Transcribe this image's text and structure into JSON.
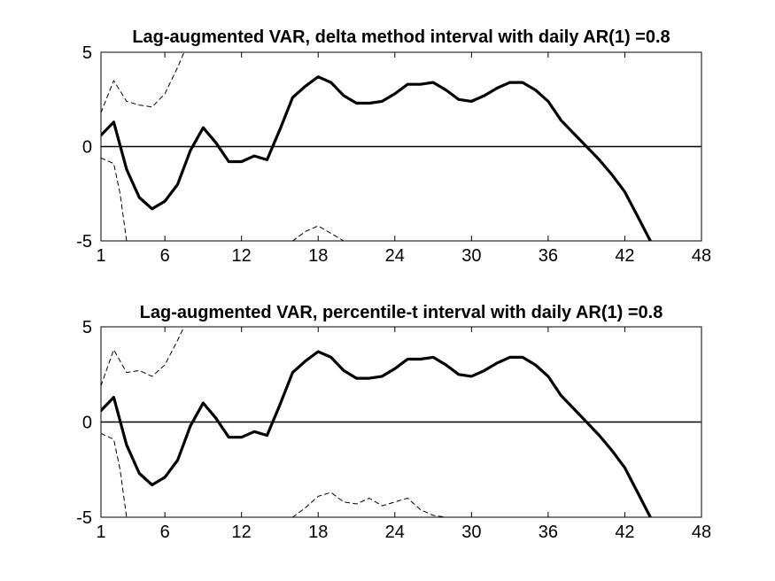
{
  "chart_data": [
    {
      "type": "line",
      "title": "Lag-augmented VAR, delta method interval with daily AR(1) =0.8",
      "xlabel": "",
      "ylabel": "",
      "xlim": [
        1,
        48
      ],
      "ylim": [
        -5,
        5
      ],
      "xticks": [
        1,
        6,
        12,
        18,
        24,
        30,
        36,
        42,
        48
      ],
      "yticks": [
        -5,
        0,
        5
      ],
      "xtick_labels": [
        "1",
        "6",
        "12",
        "18",
        "24",
        "30",
        "36",
        "42",
        "48"
      ],
      "ytick_labels": [
        "-5",
        "0",
        "5"
      ],
      "zero_line": true,
      "series": [
        {
          "name": "estimate",
          "style": "solid-thick",
          "x": [
            1,
            2,
            3,
            4,
            5,
            6,
            7,
            8,
            9,
            10,
            11,
            12,
            13,
            14,
            15,
            16,
            17,
            18,
            19,
            20,
            21,
            22,
            23,
            24,
            25,
            26,
            27,
            28,
            29,
            30,
            31,
            32,
            33,
            34,
            35,
            36,
            37,
            38,
            39,
            40,
            41,
            42,
            43,
            44
          ],
          "y": [
            0.6,
            1.3,
            -1.2,
            -2.7,
            -3.3,
            -2.9,
            -2.0,
            -0.2,
            1.0,
            0.2,
            -0.8,
            -0.8,
            -0.5,
            -0.7,
            0.9,
            2.6,
            3.2,
            3.7,
            3.4,
            2.7,
            2.3,
            2.3,
            2.4,
            2.8,
            3.3,
            3.3,
            3.4,
            3.0,
            2.5,
            2.4,
            2.7,
            3.1,
            3.4,
            3.4,
            3.0,
            2.4,
            1.4,
            0.7,
            0.0,
            -0.7,
            -1.5,
            -2.4,
            -3.7,
            -5.0
          ]
        },
        {
          "name": "upper bound",
          "style": "dashed",
          "x": [
            1,
            2,
            3,
            4,
            5,
            6,
            7,
            7.5
          ],
          "y": [
            1.8,
            3.5,
            2.4,
            2.2,
            2.1,
            2.8,
            4.2,
            5.0
          ]
        },
        {
          "name": "lower bound",
          "style": "dashed",
          "x": [
            1,
            2,
            2.5,
            3
          ],
          "y": [
            -0.6,
            -0.9,
            -2.5,
            -5.0
          ]
        },
        {
          "name": "lower bound (lag 16-20)",
          "style": "dashed",
          "x": [
            16,
            17,
            18,
            19,
            20
          ],
          "y": [
            -5.0,
            -4.5,
            -4.2,
            -4.6,
            -5.0
          ]
        }
      ]
    },
    {
      "type": "line",
      "title": "Lag-augmented VAR, percentile-t interval with daily AR(1) =0.8",
      "xlabel": "",
      "ylabel": "",
      "xlim": [
        1,
        48
      ],
      "ylim": [
        -5,
        5
      ],
      "xticks": [
        1,
        6,
        12,
        18,
        24,
        30,
        36,
        42,
        48
      ],
      "yticks": [
        -5,
        0,
        5
      ],
      "xtick_labels": [
        "1",
        "6",
        "12",
        "18",
        "24",
        "30",
        "36",
        "42",
        "48"
      ],
      "ytick_labels": [
        "-5",
        "0",
        "5"
      ],
      "zero_line": true,
      "series": [
        {
          "name": "estimate",
          "style": "solid-thick",
          "x": [
            1,
            2,
            3,
            4,
            5,
            6,
            7,
            8,
            9,
            10,
            11,
            12,
            13,
            14,
            15,
            16,
            17,
            18,
            19,
            20,
            21,
            22,
            23,
            24,
            25,
            26,
            27,
            28,
            29,
            30,
            31,
            32,
            33,
            34,
            35,
            36,
            37,
            38,
            39,
            40,
            41,
            42,
            43,
            44
          ],
          "y": [
            0.6,
            1.3,
            -1.2,
            -2.7,
            -3.3,
            -2.9,
            -2.0,
            -0.2,
            1.0,
            0.2,
            -0.8,
            -0.8,
            -0.5,
            -0.7,
            0.9,
            2.6,
            3.2,
            3.7,
            3.4,
            2.7,
            2.3,
            2.3,
            2.4,
            2.8,
            3.3,
            3.3,
            3.4,
            3.0,
            2.5,
            2.4,
            2.7,
            3.1,
            3.4,
            3.4,
            3.0,
            2.4,
            1.4,
            0.7,
            0.0,
            -0.7,
            -1.5,
            -2.4,
            -3.7,
            -5.0
          ]
        },
        {
          "name": "upper bound",
          "style": "dashed",
          "x": [
            1,
            2,
            3,
            4,
            5,
            6,
            7,
            7.5
          ],
          "y": [
            1.9,
            3.8,
            2.6,
            2.7,
            2.4,
            3.0,
            4.3,
            5.0
          ]
        },
        {
          "name": "lower bound",
          "style": "dashed",
          "x": [
            1,
            2,
            2.5,
            3
          ],
          "y": [
            -0.6,
            -0.9,
            -2.5,
            -5.0
          ]
        },
        {
          "name": "lower bound (lag 16-28)",
          "style": "dashed",
          "x": [
            16,
            17,
            18,
            19,
            20,
            21,
            22,
            23,
            24,
            25,
            26,
            27,
            28
          ],
          "y": [
            -5.0,
            -4.5,
            -3.9,
            -3.7,
            -4.2,
            -4.3,
            -4.0,
            -4.4,
            -4.2,
            -4.0,
            -4.6,
            -4.9,
            -5.0
          ]
        }
      ]
    }
  ]
}
